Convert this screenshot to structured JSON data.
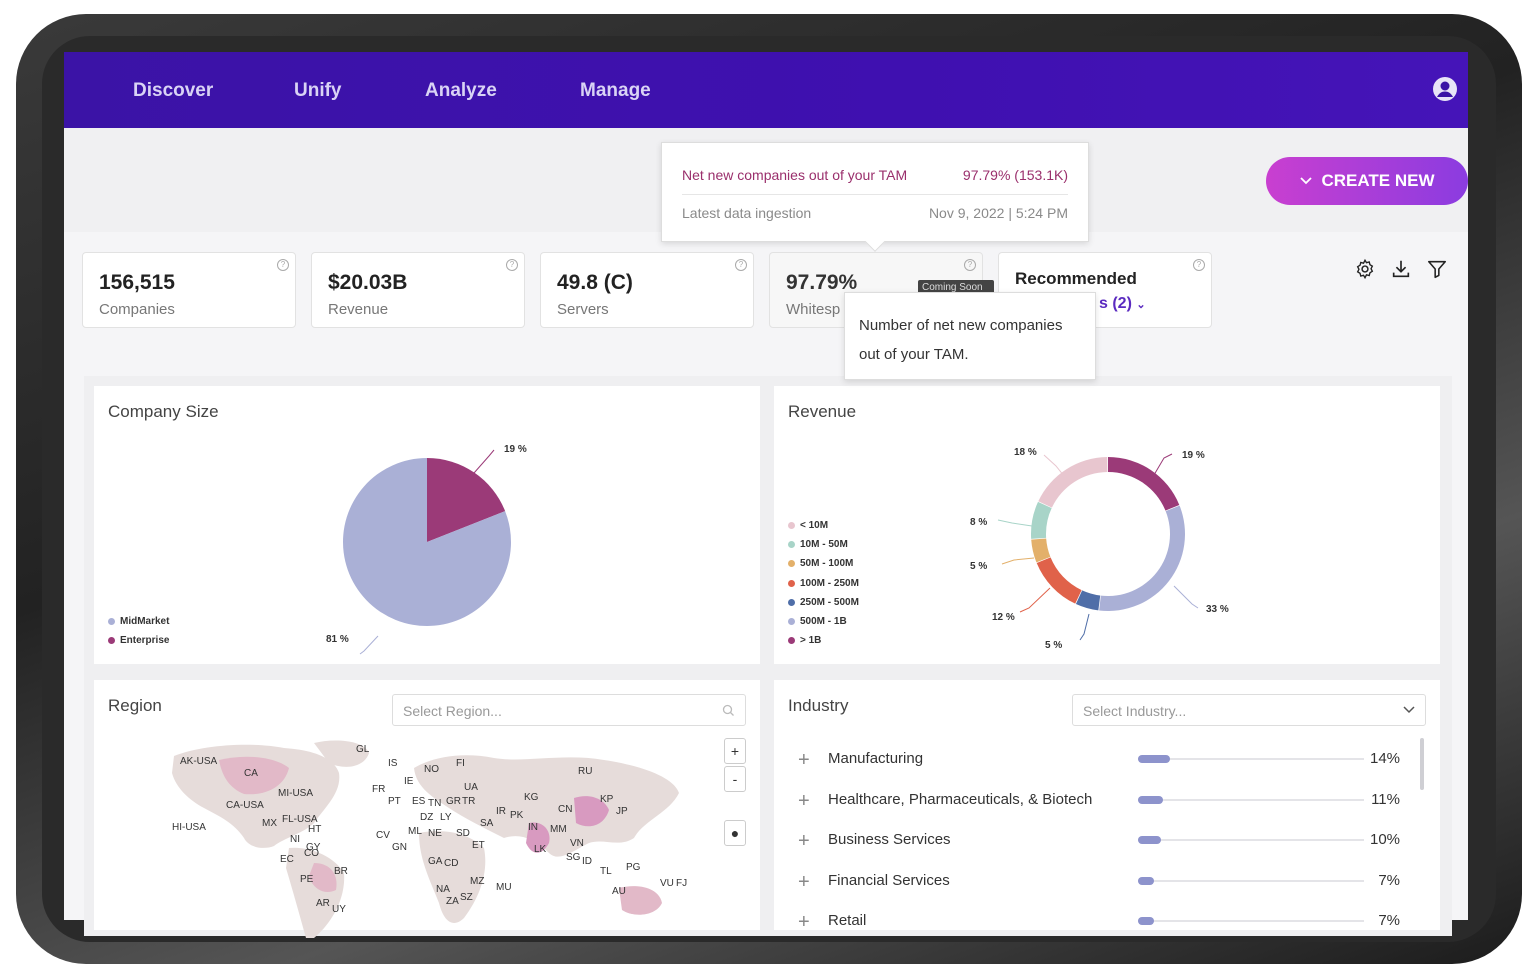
{
  "nav": {
    "items": [
      "Discover",
      "Unify",
      "Analyze",
      "Manage"
    ]
  },
  "create_button": {
    "label": "CREATE NEW"
  },
  "tooltip_top": {
    "row1_label": "Net new companies out of your TAM",
    "row1_value": "97.79% (153.1K)",
    "row2_label": "Latest data ingestion",
    "row2_value": "Nov 9, 2022 | 5:24 PM"
  },
  "kpis": [
    {
      "value": "156,515",
      "label": "Companies"
    },
    {
      "value": "$20.03B",
      "label": "Revenue"
    },
    {
      "value": "49.8 (C)",
      "label": "Servers"
    },
    {
      "value": "97.79%",
      "label": "Whitesp"
    },
    {
      "value": "Recommended",
      "label": "s (2)"
    }
  ],
  "coming_badge": "Coming Soon",
  "tooltip_mid": "Number of net new companies out of your TAM.",
  "company_size": {
    "title": "Company Size",
    "legend": [
      {
        "name": "MidMarket",
        "color": "#aab0d6"
      },
      {
        "name": "Enterprise",
        "color": "#9b3a78"
      }
    ]
  },
  "revenue": {
    "title": "Revenue",
    "legend": [
      {
        "name": "< 10M",
        "color": "#e8c6cf"
      },
      {
        "name": "10M - 50M",
        "color": "#a8d4c8"
      },
      {
        "name": "50M - 100M",
        "color": "#e3b06a"
      },
      {
        "name": "100M - 250M",
        "color": "#e0624a"
      },
      {
        "name": "250M - 500M",
        "color": "#4f6ea8"
      },
      {
        "name": "500M - 1B",
        "color": "#aab0d6"
      },
      {
        "name": "> 1B",
        "color": "#9b3a78"
      }
    ]
  },
  "chart_data": [
    {
      "type": "pie",
      "title": "Company Size",
      "categories": [
        "Enterprise",
        "MidMarket"
      ],
      "values": [
        19,
        81
      ],
      "labels": [
        "19 %",
        "81 %"
      ],
      "legend": "bottom-left"
    },
    {
      "type": "pie",
      "title": "Revenue",
      "categories": [
        "> 1B",
        "500M - 1B",
        "250M - 500M",
        "100M - 250M",
        "50M - 100M",
        "10M - 50M",
        "< 10M"
      ],
      "values": [
        19,
        33,
        5,
        12,
        5,
        8,
        18
      ],
      "labels": [
        "19 %",
        "33 %",
        "5 %",
        "12 %",
        "5 %",
        "8 %",
        "18 %"
      ],
      "legend": "left"
    }
  ],
  "region": {
    "title": "Region",
    "placeholder": "Select Region...",
    "zoom_in": "+",
    "zoom_out": "-",
    "labels": [
      "AK-USA",
      "CA",
      "GL",
      "IS",
      "NO",
      "FI",
      "RU",
      "FR",
      "IE",
      "UA",
      "MI-USA",
      "CA-USA",
      "PT",
      "ES",
      "TN",
      "GR",
      "TR",
      "KG",
      "CN",
      "KP",
      "JP",
      "MX",
      "FL-USA",
      "DZ",
      "LY",
      "IR",
      "PK",
      "HI-USA",
      "HT",
      "SA",
      "IN",
      "MM",
      "NI",
      "CV",
      "ML",
      "NE",
      "SD",
      "LK",
      "VN",
      "GY",
      "CO",
      "GN",
      "ET",
      "SG",
      "ID",
      "EC",
      "GA",
      "CD",
      "TL",
      "PG",
      "PE",
      "BR",
      "MZ",
      "NA",
      "MU",
      "SZ",
      "AU",
      "VU",
      "FJ",
      "ZA",
      "AR",
      "UY"
    ]
  },
  "industry": {
    "title": "Industry",
    "placeholder": "Select Industry...",
    "rows": [
      {
        "name": "Manufacturing",
        "pct": "14%",
        "value": 14
      },
      {
        "name": "Healthcare, Pharmaceuticals, & Biotech",
        "pct": "11%",
        "value": 11
      },
      {
        "name": "Business Services",
        "pct": "10%",
        "value": 10
      },
      {
        "name": "Financial Services",
        "pct": "7%",
        "value": 7
      },
      {
        "name": "Retail",
        "pct": "7%",
        "value": 7
      }
    ]
  }
}
